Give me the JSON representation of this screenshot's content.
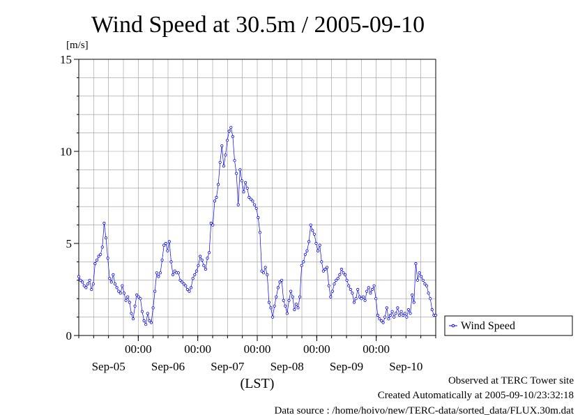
{
  "chart_data": {
    "type": "line",
    "title": "Wind Speed at 30.5m / 2005-09-10",
    "ylabel": "[m/s]",
    "xlabel": "(LST)",
    "ylim": [
      0,
      15
    ],
    "yticks": [
      0,
      5,
      10,
      15
    ],
    "x_time_labels": [
      "00:00",
      "00:00",
      "00:00",
      "00:00",
      "00:00"
    ],
    "x_date_labels": [
      "Sep-05",
      "Sep-06",
      "Sep-07",
      "Sep-08",
      "Sep-09",
      "Sep-10"
    ],
    "grid": true,
    "legend_position": "right",
    "series": [
      {
        "name": "Wind Speed",
        "color": "#0000ff",
        "x_hours_start": 0,
        "x_hours_end": 144,
        "values": [
          3.2,
          3.0,
          2.9,
          2.7,
          2.6,
          2.8,
          3.0,
          2.5,
          2.8,
          3.9,
          4.1,
          4.3,
          4.4,
          4.8,
          6.1,
          5.3,
          4.2,
          3.1,
          2.9,
          3.3,
          2.8,
          2.6,
          2.4,
          2.3,
          2.7,
          2.3,
          1.9,
          2.1,
          1.8,
          1.2,
          0.9,
          1.6,
          2.2,
          2.1,
          2.0,
          1.3,
          0.8,
          0.6,
          1.2,
          0.8,
          0.7,
          1.5,
          2.4,
          3.4,
          3.2,
          3.4,
          4.1,
          4.9,
          5.0,
          4.6,
          5.1,
          4.0,
          3.3,
          3.5,
          3.4,
          3.4,
          3.0,
          2.9,
          2.8,
          2.7,
          2.5,
          2.4,
          2.6,
          3.1,
          3.3,
          3.5,
          3.8,
          4.3,
          4.1,
          3.8,
          3.6,
          4.2,
          4.5,
          6.1,
          6.0,
          7.3,
          7.5,
          8.2,
          9.4,
          10.3,
          9.2,
          9.8,
          10.6,
          11.1,
          11.3,
          10.8,
          9.5,
          8.8,
          7.1,
          9.0,
          8.4,
          7.8,
          8.3,
          8.0,
          7.5,
          7.4,
          7.3,
          7.1,
          6.9,
          6.4,
          5.6,
          3.5,
          3.4,
          3.7,
          3.3,
          1.8,
          1.5,
          1.0,
          1.6,
          2.1,
          2.6,
          2.9,
          3.0,
          1.9,
          1.6,
          1.2,
          1.9,
          2.4,
          2.1,
          1.4,
          1.7,
          1.5,
          2.1,
          3.8,
          4.0,
          4.4,
          4.6,
          5.1,
          6.0,
          5.7,
          5.5,
          5.0,
          4.6,
          4.9,
          4.0,
          3.5,
          3.6,
          3.7,
          2.7,
          2.1,
          2.4,
          2.8,
          3.0,
          3.1,
          3.3,
          3.6,
          3.4,
          3.3,
          3.0,
          2.7,
          2.5,
          2.3,
          1.8,
          2.0,
          2.5,
          2.1,
          2.0,
          2.1,
          1.9,
          2.4,
          2.6,
          2.3,
          2.5,
          2.7,
          2.0,
          1.1,
          0.9,
          0.8,
          0.7,
          1.0,
          1.5,
          0.9,
          1.1,
          1.3,
          1.0,
          1.2,
          1.5,
          1.1,
          1.3,
          1.1,
          1.2,
          1.0,
          1.4,
          1.2,
          2.2,
          1.8,
          3.9,
          3.0,
          3.4,
          3.2,
          3.0,
          2.8,
          2.7,
          2.3,
          2.0,
          1.4,
          1.1,
          1.1
        ]
      }
    ]
  },
  "footer": {
    "observed": "Observed at TERC Tower site",
    "created": "Created Automatically at 2005-09-10/23:32:18",
    "source": "Data source : /home/hoivo/new/TERC-data/sorted_data/FLUX.30m.dat"
  }
}
